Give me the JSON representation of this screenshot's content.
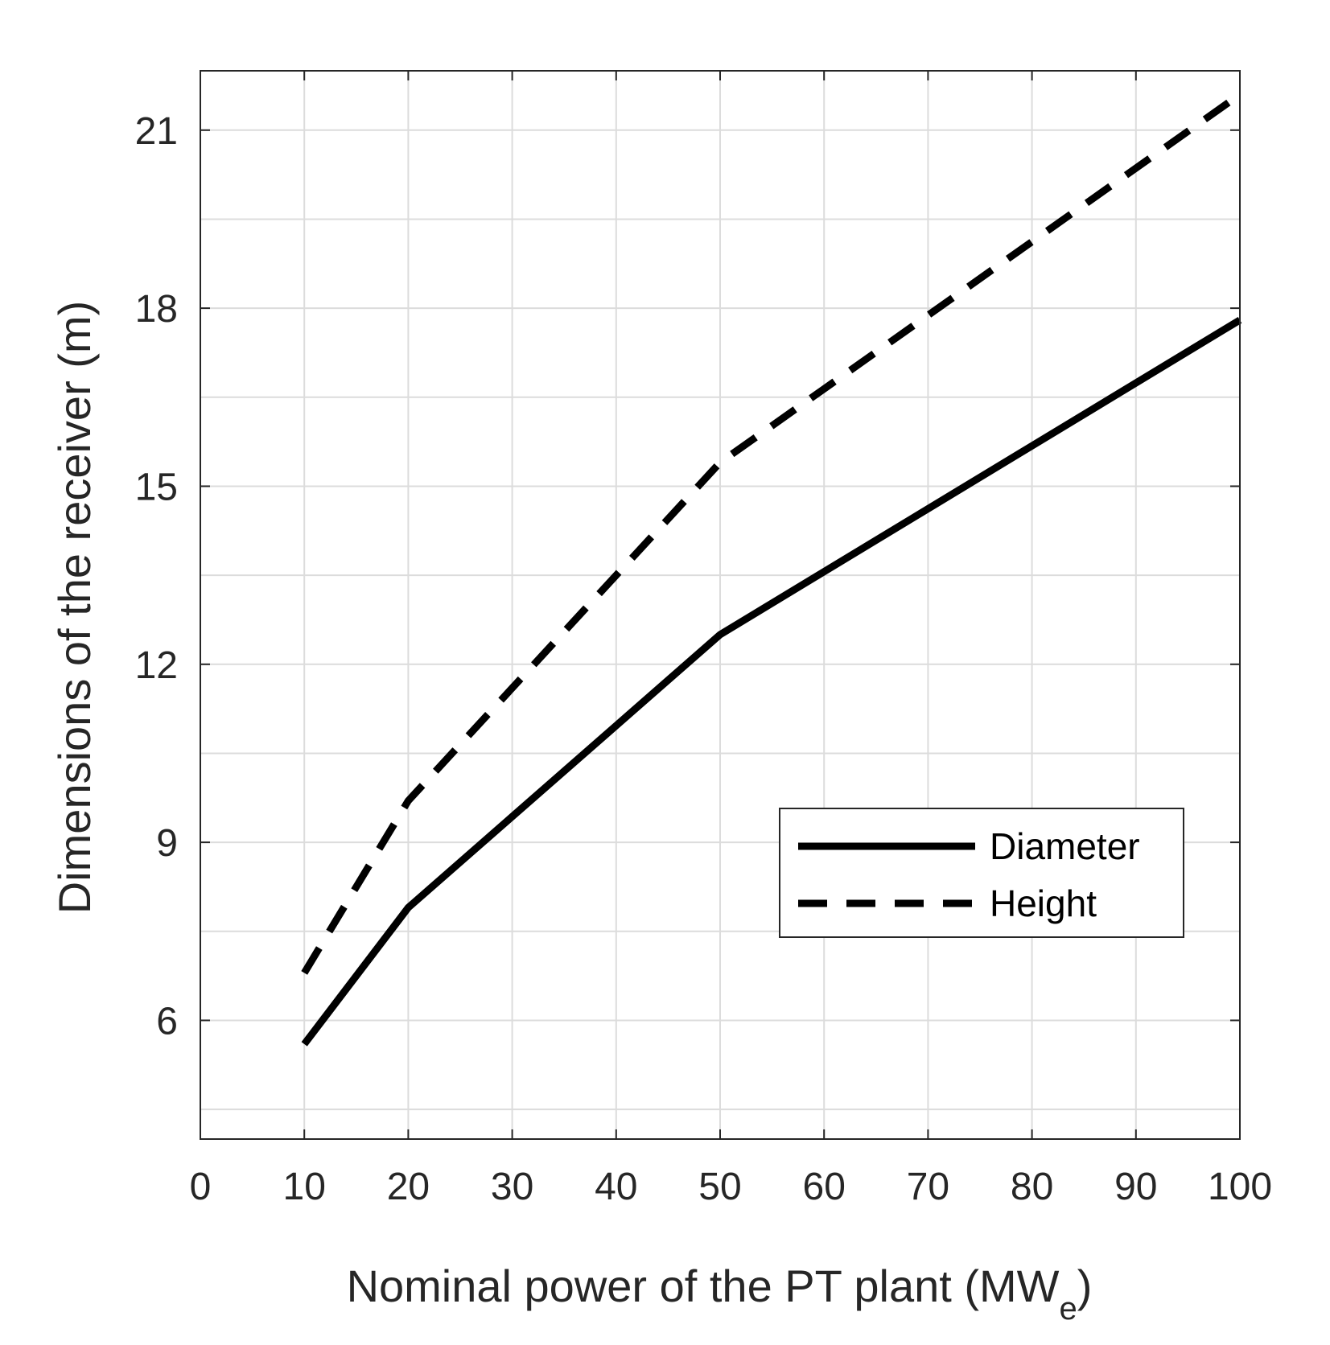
{
  "chart_data": {
    "type": "line",
    "title": "",
    "xlabel": "Nominal power of the PT plant (MW",
    "xlabel_subscript": "e",
    "xlabel_suffix": ")",
    "ylabel": "Dimensions of the receiver (m)",
    "xlim": [
      0,
      100
    ],
    "ylim": [
      4,
      22
    ],
    "x_ticks": [
      0,
      10,
      20,
      30,
      40,
      50,
      60,
      70,
      80,
      90,
      100
    ],
    "x_tick_labels": [
      "0",
      "10",
      "20",
      "30",
      "40",
      "50",
      "60",
      "70",
      "80",
      "90",
      "100"
    ],
    "y_ticks": [
      6,
      9,
      12,
      15,
      18,
      21
    ],
    "y_tick_labels": [
      "6",
      "9",
      "12",
      "15",
      "18",
      "21"
    ],
    "x_grid": [
      0,
      10,
      20,
      30,
      40,
      50,
      60,
      70,
      80,
      90,
      100
    ],
    "y_grid": [
      4.5,
      6,
      7.5,
      9,
      10.5,
      12,
      13.5,
      15,
      16.5,
      18,
      19.5,
      21,
      22.5
    ],
    "grid": true,
    "legend_position": "center-right",
    "x": [
      10,
      20,
      50,
      100
    ],
    "series": [
      {
        "name": "Diameter",
        "style": "solid",
        "color": "#000000",
        "values": [
          5.6,
          7.9,
          12.5,
          17.8
        ]
      },
      {
        "name": "Height",
        "style": "dashed",
        "color": "#000000",
        "values": [
          6.8,
          9.7,
          15.4,
          21.6
        ]
      }
    ]
  }
}
